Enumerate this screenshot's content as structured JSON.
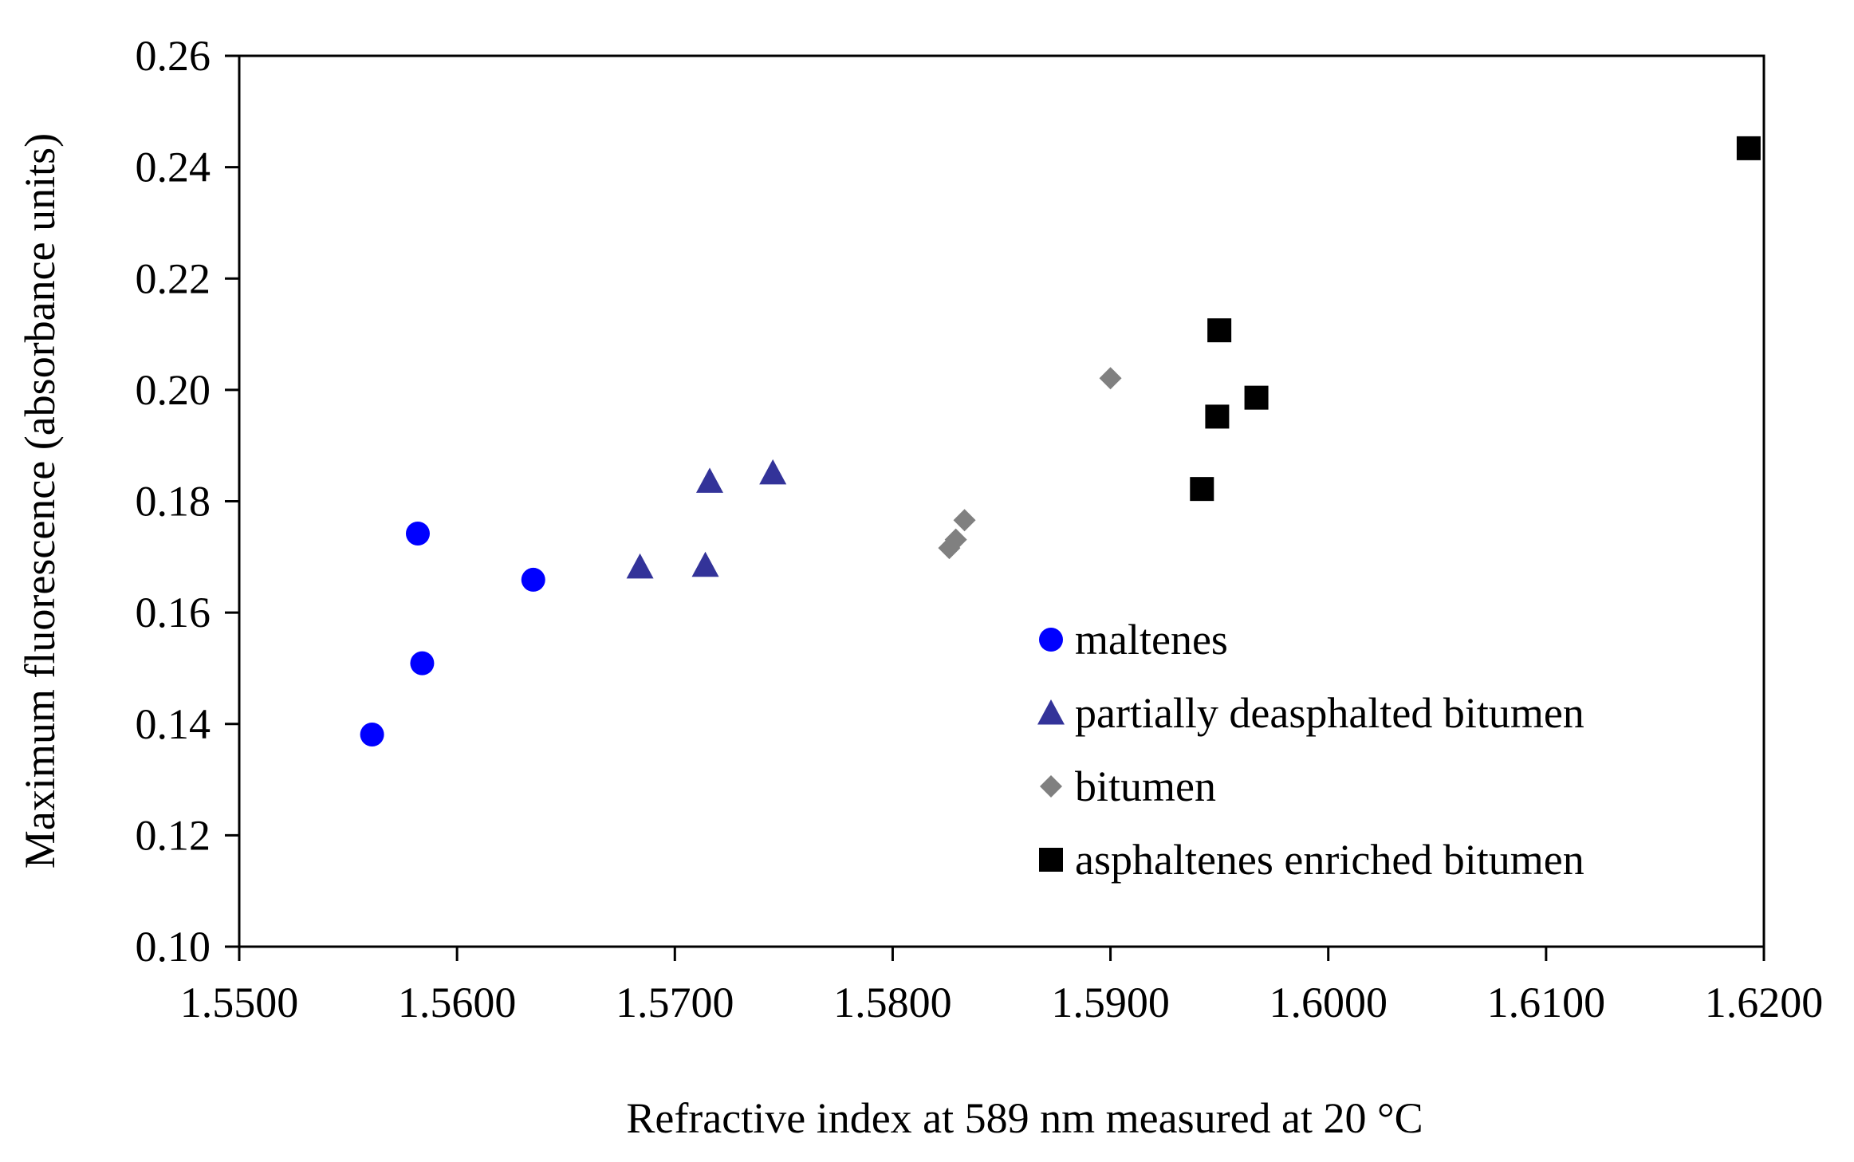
{
  "chart_data": {
    "type": "scatter",
    "title": "",
    "xlabel": "Refractive index at 589 nm measured at 20 °C",
    "ylabel": "Maximum fluorescence (absorbance units)",
    "xlim": [
      1.55,
      1.62
    ],
    "ylim": [
      0.1,
      0.26
    ],
    "x_ticks": [
      "1.5500",
      "1.5600",
      "1.5700",
      "1.5800",
      "1.5900",
      "1.6000",
      "1.6100",
      "1.6200"
    ],
    "y_ticks": [
      "0.10",
      "0.12",
      "0.14",
      "0.16",
      "0.18",
      "0.20",
      "0.22",
      "0.24",
      "0.26"
    ],
    "grid": false,
    "legend_position": "center-right",
    "series": [
      {
        "name": "maltenes",
        "marker": "circle",
        "color": "#0000ff",
        "points": [
          [
            1.5561,
            0.1381
          ],
          [
            1.5582,
            0.1742
          ],
          [
            1.5584,
            0.1509
          ],
          [
            1.5635,
            0.1659
          ]
        ]
      },
      {
        "name": "partially deasphalted bitumen",
        "marker": "triangle",
        "color": "#333399",
        "points": [
          [
            1.5684,
            0.1682
          ],
          [
            1.5714,
            0.1685
          ],
          [
            1.5716,
            0.1836
          ],
          [
            1.5745,
            0.1851
          ]
        ]
      },
      {
        "name": "bitumen",
        "marker": "diamond",
        "color": "#808080",
        "points": [
          [
            1.5826,
            0.1716
          ],
          [
            1.5829,
            0.1731
          ],
          [
            1.5833,
            0.1766
          ],
          [
            1.59,
            0.2021
          ]
        ]
      },
      {
        "name": "asphaltenes enriched bitumen",
        "marker": "square",
        "color": "#000000",
        "points": [
          [
            1.5942,
            0.1822
          ],
          [
            1.5949,
            0.1952
          ],
          [
            1.595,
            0.2107
          ],
          [
            1.5967,
            0.1986
          ],
          [
            1.6193,
            0.2434
          ]
        ]
      }
    ]
  }
}
